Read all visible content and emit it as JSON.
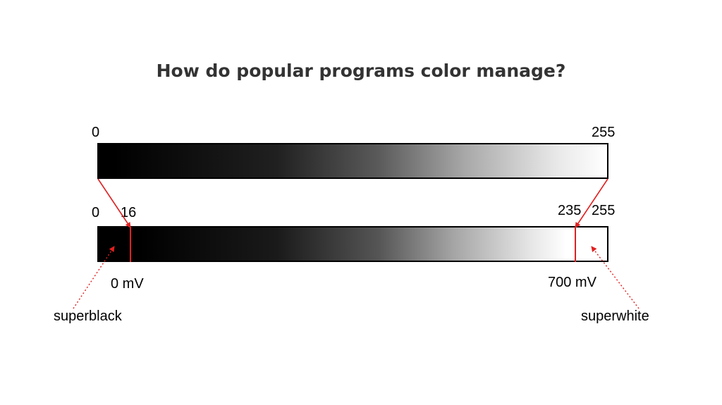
{
  "title": "How do popular programs color manage?",
  "top_bar": {
    "left_label": "0",
    "right_label": "255"
  },
  "bottom_bar": {
    "left_label": "0",
    "black_level_label": "16",
    "white_level_label": "235",
    "right_label": "255",
    "black_voltage": "0 mV",
    "white_voltage": "700 mV"
  },
  "callouts": {
    "superblack": "superblack",
    "superwhite": "superwhite"
  },
  "colors": {
    "accent": "#e02020",
    "title": "#333333"
  }
}
